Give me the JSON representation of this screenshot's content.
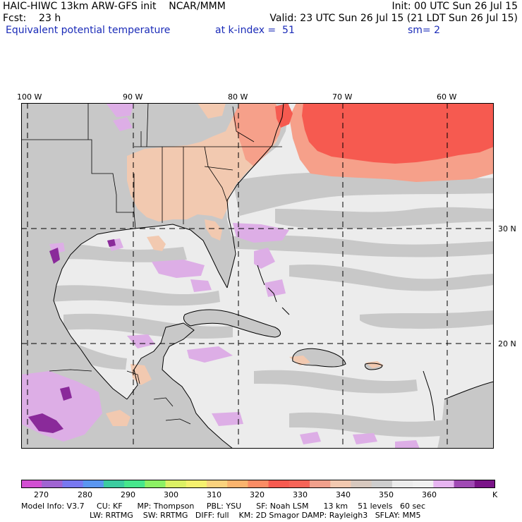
{
  "header": {
    "line1_left": "HAIC-HIWC 13km ARW-GFS init    NCAR/MMM",
    "line1_right": "Init: 00 UTC Sun 26 Jul 15",
    "fcst": "Fcst:    23 h",
    "valid": "Valid: 23 UTC Sun 26 Jul 15 (21 LDT Sun 26 Jul 15)",
    "field": "Equivalent potential temperature",
    "kindex": "at k-index =  51",
    "smooth": "sm= 2"
  },
  "map": {
    "lon_labels": [
      "100 W",
      "90 W",
      "80 W",
      "70 W",
      "60 W"
    ],
    "lat_labels": [
      "30 N",
      "20 N"
    ],
    "colors": {
      "land_gray": "#c8c8c8",
      "sea_light": "#ececec",
      "warm_peach": "#f2c9b0",
      "hot_red": "#f65a50",
      "lavender": "#ddaee6",
      "purple": "#8a2a9a",
      "coast": "#000000",
      "grid": "#000000"
    }
  },
  "colorbar": {
    "labels": [
      "270",
      "280",
      "290",
      "300",
      "310",
      "320",
      "330",
      "340",
      "350",
      "360"
    ],
    "unit": "K",
    "colors": [
      "#d24fd2",
      "#a064d2",
      "#7878f0",
      "#5a96f0",
      "#3ccca0",
      "#46e68c",
      "#8cf064",
      "#dcf064",
      "#f5f06e",
      "#fad27d",
      "#fab46e",
      "#fa8c64",
      "#f65a50",
      "#f66458",
      "#f0a08c",
      "#f2c9b0",
      "#d7c8be",
      "#cdcdcd",
      "#ececec",
      "#f0f0f0",
      "#e6b4f0",
      "#a04ab4",
      "#7a1488"
    ]
  },
  "footer": {
    "line1": "Model Info: V3.7     CU: KF      MP: Thompson     PBL: YSU      SF: Noah LSM      13 km    51 levels   60 sec",
    "line2": "LW: RRTMG    SW: RRTMG   DIFF: full    KM: 2D Smagor DAMP: Rayleigh3   SFLAY: MM5"
  }
}
